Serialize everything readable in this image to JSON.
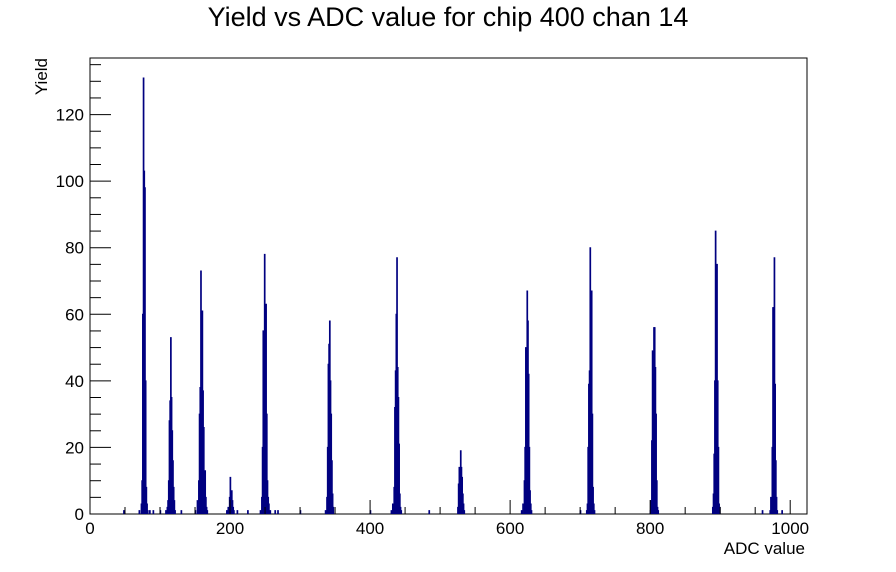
{
  "chart_data": {
    "type": "histogram",
    "title": "Yield vs ADC value for chip 400 chan 14",
    "xlabel": "ADC value",
    "ylabel": "Yield",
    "xlim": [
      0,
      1024
    ],
    "ylim": [
      0,
      137
    ],
    "x_ticks": [
      0,
      200,
      400,
      600,
      800,
      1000
    ],
    "y_ticks": [
      0,
      20,
      40,
      60,
      80,
      100,
      120
    ],
    "grid": false,
    "legend": "none",
    "line_color": "#000080",
    "bins": [
      [
        48,
        1
      ],
      [
        70,
        1
      ],
      [
        73,
        3
      ],
      [
        74,
        10
      ],
      [
        75,
        60
      ],
      [
        76,
        131
      ],
      [
        77,
        103
      ],
      [
        78,
        98
      ],
      [
        79,
        40
      ],
      [
        80,
        8
      ],
      [
        81,
        3
      ],
      [
        82,
        1
      ],
      [
        85,
        1
      ],
      [
        90,
        1
      ],
      [
        100,
        1
      ],
      [
        108,
        1
      ],
      [
        110,
        2
      ],
      [
        111,
        4
      ],
      [
        112,
        10
      ],
      [
        113,
        28
      ],
      [
        114,
        34
      ],
      [
        115,
        53
      ],
      [
        116,
        35
      ],
      [
        117,
        25
      ],
      [
        118,
        16
      ],
      [
        119,
        8
      ],
      [
        120,
        4
      ],
      [
        121,
        1
      ],
      [
        130,
        1
      ],
      [
        150,
        1
      ],
      [
        153,
        4
      ],
      [
        155,
        10
      ],
      [
        156,
        30
      ],
      [
        157,
        38
      ],
      [
        158,
        73
      ],
      [
        159,
        28
      ],
      [
        160,
        61
      ],
      [
        161,
        37
      ],
      [
        162,
        26
      ],
      [
        163,
        7
      ],
      [
        164,
        13
      ],
      [
        165,
        5
      ],
      [
        166,
        2
      ],
      [
        167,
        1
      ],
      [
        195,
        1
      ],
      [
        197,
        2
      ],
      [
        199,
        5
      ],
      [
        200,
        11
      ],
      [
        201,
        5
      ],
      [
        202,
        7
      ],
      [
        203,
        4
      ],
      [
        204,
        2
      ],
      [
        205,
        1
      ],
      [
        210,
        1
      ],
      [
        225,
        1
      ],
      [
        243,
        1
      ],
      [
        245,
        5
      ],
      [
        246,
        20
      ],
      [
        247,
        55
      ],
      [
        248,
        34
      ],
      [
        249,
        78
      ],
      [
        250,
        45
      ],
      [
        251,
        63
      ],
      [
        252,
        30
      ],
      [
        253,
        10
      ],
      [
        254,
        5
      ],
      [
        255,
        3
      ],
      [
        257,
        1
      ],
      [
        264,
        1
      ],
      [
        268,
        1
      ],
      [
        300,
        1
      ],
      [
        336,
        1
      ],
      [
        338,
        5
      ],
      [
        339,
        20
      ],
      [
        340,
        45
      ],
      [
        341,
        51
      ],
      [
        342,
        58
      ],
      [
        343,
        40
      ],
      [
        344,
        30
      ],
      [
        345,
        16
      ],
      [
        346,
        6
      ],
      [
        347,
        2
      ],
      [
        400,
        1
      ],
      [
        430,
        1
      ],
      [
        432,
        3
      ],
      [
        434,
        8
      ],
      [
        435,
        32
      ],
      [
        436,
        43
      ],
      [
        437,
        60
      ],
      [
        438,
        77
      ],
      [
        439,
        44
      ],
      [
        440,
        35
      ],
      [
        441,
        21
      ],
      [
        442,
        6
      ],
      [
        443,
        2
      ],
      [
        444,
        1
      ],
      [
        484,
        1
      ],
      [
        525,
        2
      ],
      [
        526,
        9
      ],
      [
        527,
        14
      ],
      [
        528,
        13
      ],
      [
        529,
        19
      ],
      [
        530,
        14
      ],
      [
        531,
        11
      ],
      [
        532,
        6
      ],
      [
        533,
        3
      ],
      [
        534,
        1
      ],
      [
        616,
        1
      ],
      [
        618,
        3
      ],
      [
        620,
        10
      ],
      [
        621,
        20
      ],
      [
        622,
        50
      ],
      [
        623,
        46
      ],
      [
        624,
        67
      ],
      [
        625,
        58
      ],
      [
        626,
        42
      ],
      [
        627,
        20
      ],
      [
        628,
        7
      ],
      [
        629,
        3
      ],
      [
        630,
        1
      ],
      [
        700,
        1
      ],
      [
        709,
        1
      ],
      [
        710,
        3
      ],
      [
        711,
        20
      ],
      [
        712,
        39
      ],
      [
        713,
        43
      ],
      [
        714,
        80
      ],
      [
        715,
        28
      ],
      [
        716,
        67
      ],
      [
        717,
        30
      ],
      [
        718,
        8
      ],
      [
        719,
        3
      ],
      [
        720,
        1
      ],
      [
        800,
        1
      ],
      [
        801,
        4
      ],
      [
        802,
        22
      ],
      [
        803,
        49
      ],
      [
        804,
        42
      ],
      [
        805,
        56
      ],
      [
        806,
        56
      ],
      [
        807,
        44
      ],
      [
        808,
        30
      ],
      [
        809,
        10
      ],
      [
        810,
        2
      ],
      [
        811,
        1
      ],
      [
        889,
        2
      ],
      [
        890,
        6
      ],
      [
        891,
        18
      ],
      [
        892,
        40
      ],
      [
        893,
        85
      ],
      [
        894,
        70
      ],
      [
        895,
        75
      ],
      [
        896,
        40
      ],
      [
        897,
        20
      ],
      [
        898,
        3
      ],
      [
        899,
        2
      ],
      [
        960,
        1
      ],
      [
        971,
        1
      ],
      [
        972,
        5
      ],
      [
        973,
        3
      ],
      [
        974,
        20
      ],
      [
        975,
        62
      ],
      [
        976,
        62
      ],
      [
        977,
        77
      ],
      [
        978,
        39
      ],
      [
        979,
        16
      ],
      [
        980,
        5
      ],
      [
        981,
        1
      ],
      [
        988,
        1
      ]
    ]
  }
}
